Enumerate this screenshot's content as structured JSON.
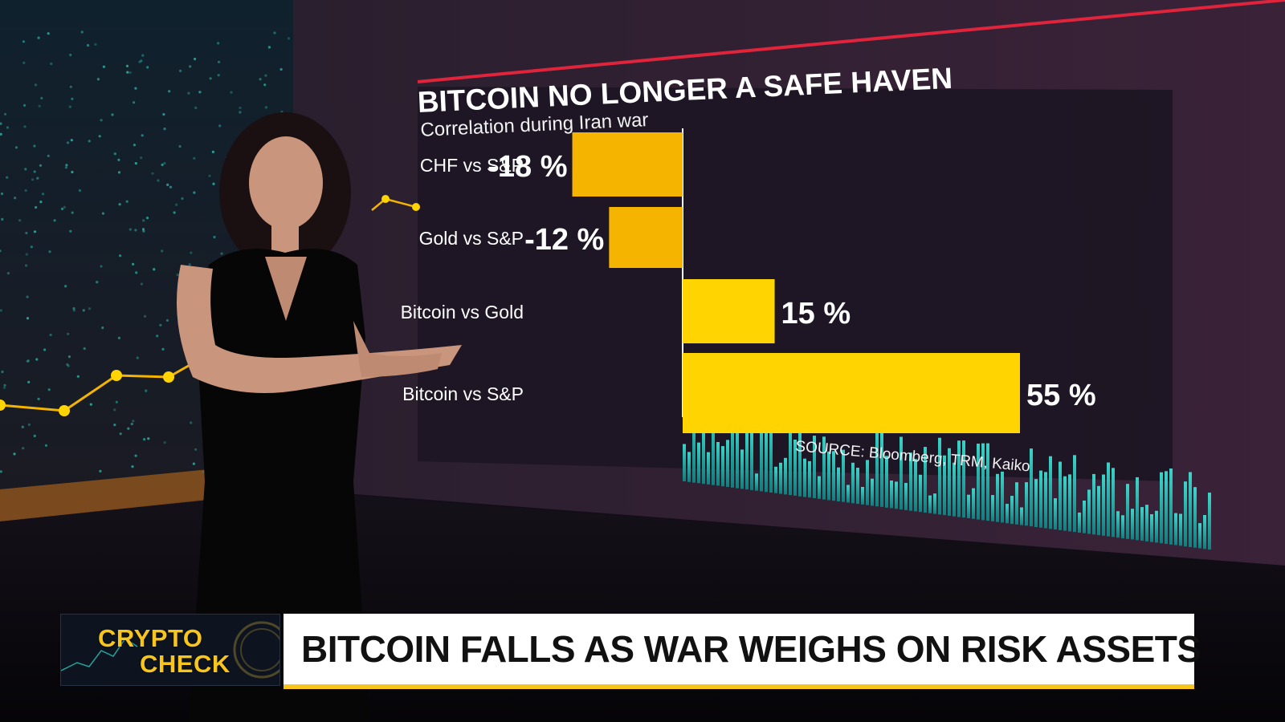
{
  "wall_graphic": {
    "title": "BITCOIN NO LONGER A SAFE HAVEN",
    "subtitle": "Correlation during Iran war",
    "source": "SOURCE: Bloomberg, TRM, Kaiko"
  },
  "chart_data": {
    "type": "bar",
    "orientation": "horizontal",
    "title": "BITCOIN NO LONGER A SAFE HAVEN",
    "subtitle": "Correlation during Iran war",
    "categories": [
      "CHF vs S&P",
      "Gold vs S&P",
      "Bitcoin vs Gold",
      "Bitcoin vs S&P"
    ],
    "values": [
      -18,
      -12,
      15,
      55
    ],
    "value_labels": [
      "-18 %",
      "-12 %",
      "15 %",
      "55 %"
    ],
    "unit": "%",
    "colors": {
      "negative": "#f5b400",
      "positive": "#ffd400"
    },
    "grid": false,
    "source": "SOURCE: Bloomberg, TRM, Kaiko"
  },
  "lower_third": {
    "show_name_line1": "CRYPTO",
    "show_name_line2": "CHECK",
    "headline": "BITCOIN FALLS AS WAR WEIGHS ON RISK ASSETS"
  },
  "colors": {
    "accent_yellow": "#f7c51c",
    "wall_red_rule": "#e0243c",
    "teal_bars": "#2fe0d0"
  }
}
